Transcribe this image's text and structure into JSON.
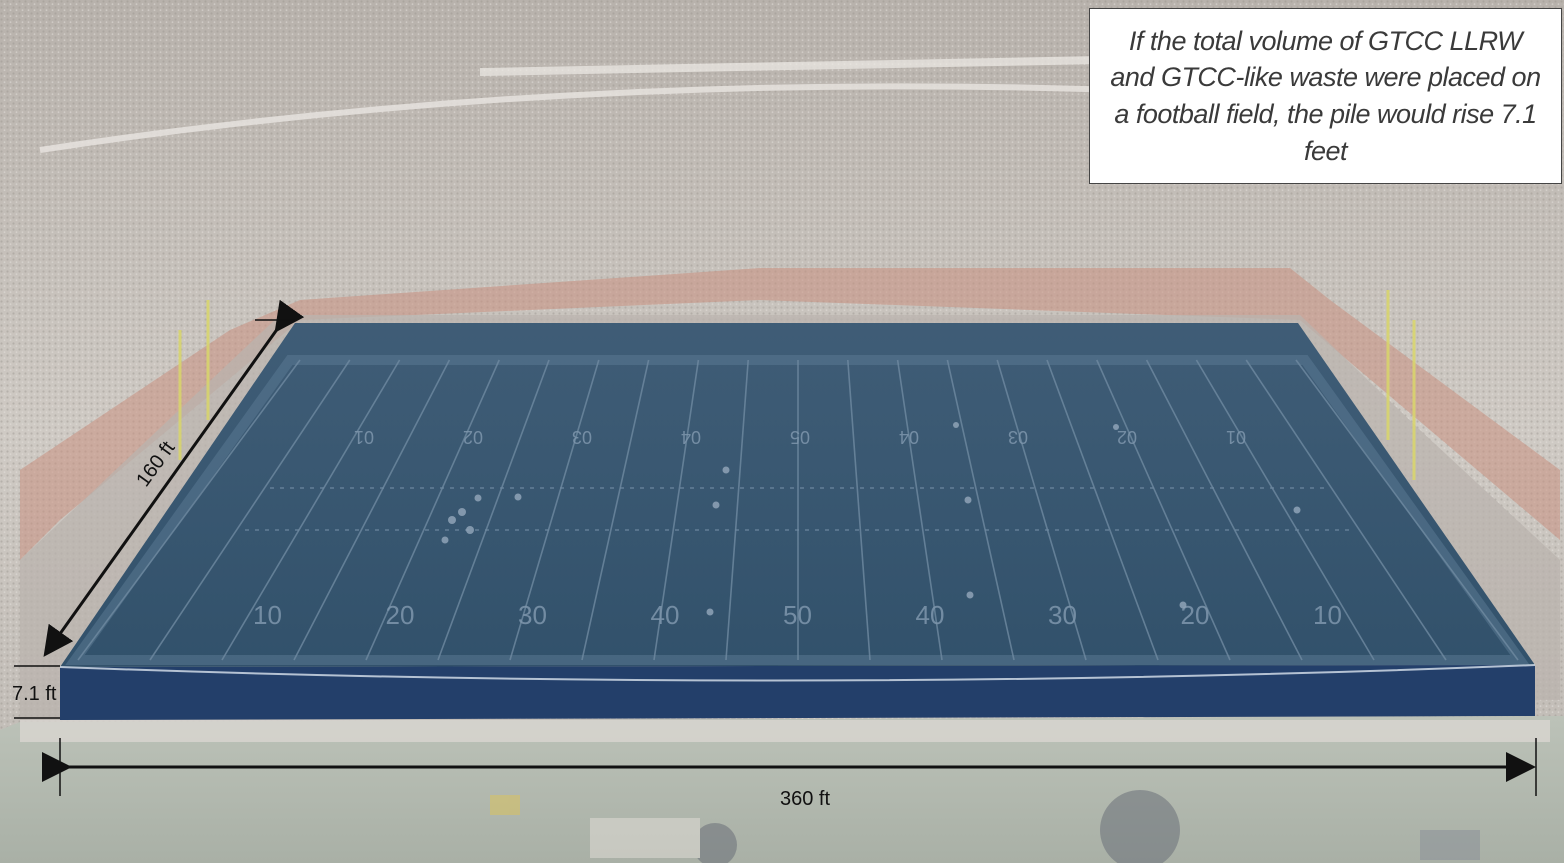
{
  "callout": {
    "text": "If the total volume of GTCC LLRW and GTCC-like waste were placed on a football field, the pile would rise 7.1 feet"
  },
  "dimensions": {
    "width_label": "160 ft",
    "height_label": "7.1 ft",
    "length_label": "360 ft"
  },
  "field": {
    "yard_numbers_far": [
      "01",
      "02",
      "03",
      "04",
      "05",
      "04",
      "03",
      "02",
      "01"
    ],
    "yard_numbers_near": [
      "10",
      "20",
      "30",
      "40",
      "50",
      "40",
      "30",
      "20",
      "10"
    ]
  },
  "colors": {
    "waste_block_top": "#2f4f6e",
    "waste_block_side": "#233f6a",
    "stands_haze": "#c9c6c2",
    "seat_wall_red": "#c0553f",
    "arrow": "#111111"
  }
}
